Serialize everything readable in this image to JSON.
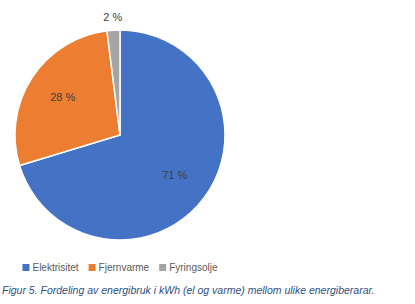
{
  "chart_data": {
    "type": "pie",
    "categories": [
      "Elektrisitet",
      "Fjernvarme",
      "Fyringsolje"
    ],
    "values": [
      71,
      28,
      2
    ],
    "value_labels": [
      "71 %",
      "28 %",
      "2 %"
    ],
    "colors": [
      "#4472c4",
      "#ed7d31",
      "#a5a5a5"
    ],
    "data_labels": true,
    "legend": "bottom",
    "caption": "Figur 5. Fordeling av energibruk i kWh (el og varme) mellom ulike energiberarar."
  }
}
